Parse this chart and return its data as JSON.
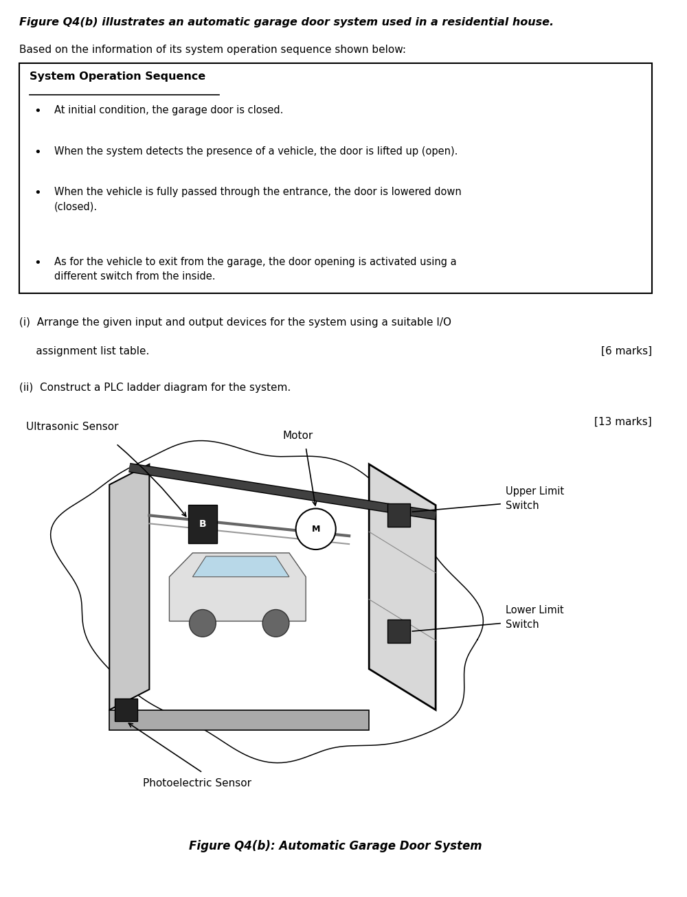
{
  "bg_color": "#ffffff",
  "title_line1": "Figure Q4(b) illustrates an automatic garage door system used in a residential house.",
  "subtitle_line": "Based on the information of its system operation sequence shown below:",
  "box_header": "System Operation Sequence",
  "bullet_points": [
    "At initial condition, the garage door is closed.",
    "When the system detects the presence of a vehicle, the door is lifted up (open).",
    "When the vehicle is fully passed through the entrance, the door is lowered down\n(closed).",
    "As for the vehicle to exit from the garage, the door opening is activated using a\ndifferent switch from the inside."
  ],
  "question_i_1": "(i)  Arrange the given input and output devices for the system using a suitable I/O",
  "question_i_2": "     assignment list table.",
  "marks_i": "[6 marks]",
  "question_ii": "(ii)  Construct a PLC ladder diagram for the system.",
  "marks_ii": "[13 marks]",
  "label_ultrasonic": "Ultrasonic Sensor",
  "label_motor": "Motor",
  "label_upper": "Upper Limit\nSwitch",
  "label_lower": "Lower Limit\nSwitch",
  "label_photoelectric": "Photoelectric Sensor",
  "fig_caption": "Figure Q4(b): Automatic Garage Door System"
}
